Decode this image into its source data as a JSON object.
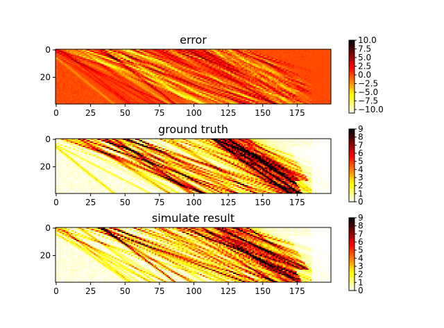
{
  "chart_data": [
    {
      "type": "heatmap",
      "title": "error",
      "xlabel": "",
      "ylabel": "",
      "xlim": [
        0,
        199
      ],
      "ylim": [
        39,
        0
      ],
      "xticks": [
        "0",
        "25",
        "50",
        "75",
        "100",
        "125",
        "150",
        "175"
      ],
      "yticks": [
        "0",
        "20"
      ],
      "colormap": "hot_r",
      "colorbar": {
        "vmin": -11,
        "vmax": 10,
        "ticks": [
          "10.0",
          "7.5",
          "5.0",
          "2.5",
          "0.0",
          "−2.5",
          "−5.0",
          "−7.5",
          "−10.0"
        ]
      },
      "description_values": "signed difference simulate - ground truth, mostly near 0 (orange) with diagonal streaks of +/- values"
    },
    {
      "type": "heatmap",
      "title": "ground truth",
      "xlabel": "",
      "ylabel": "",
      "xlim": [
        0,
        199
      ],
      "ylim": [
        39,
        0
      ],
      "xticks": [
        "0",
        "25",
        "50",
        "75",
        "100",
        "125",
        "150",
        "175"
      ],
      "yticks": [
        "0",
        "20"
      ],
      "colormap": "hot_r",
      "colorbar": {
        "vmin": 0,
        "vmax": 9,
        "ticks": [
          "9",
          "8",
          "7",
          "6",
          "5",
          "4",
          "3",
          "2",
          "1",
          "0"
        ]
      }
    },
    {
      "type": "heatmap",
      "title": "simulate result",
      "xlabel": "",
      "ylabel": "",
      "xlim": [
        0,
        199
      ],
      "ylim": [
        39,
        0
      ],
      "xticks": [
        "0",
        "25",
        "50",
        "75",
        "100",
        "125",
        "150",
        "175"
      ],
      "yticks": [
        "0",
        "20"
      ],
      "colormap": "hot_r",
      "colorbar": {
        "vmin": 0,
        "vmax": 9,
        "ticks": [
          "9",
          "8",
          "7",
          "6",
          "5",
          "4",
          "3",
          "2",
          "1",
          "0"
        ]
      }
    }
  ],
  "colors": {
    "hot_r_stops": [
      "#ffffff",
      "#ffff00",
      "#ff6600",
      "#cc0000",
      "#400000",
      "#000000"
    ]
  }
}
